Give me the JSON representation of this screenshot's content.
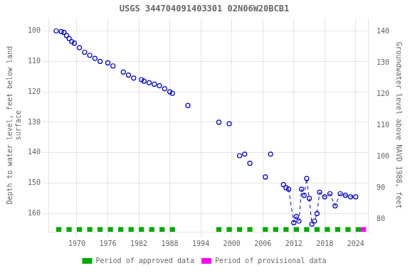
{
  "chart_data": {
    "type": "scatter",
    "title": "USGS 344704091403301 02N06W20BCB1",
    "ylabel": "Depth to water level, feet below land\nsurface",
    "y2label": "Groundwater level above NAVD 1988, feet",
    "xlim": [
      1964.5,
      2026.5
    ],
    "xticks": [
      1970,
      1976,
      1982,
      1988,
      1994,
      2000,
      2006,
      2012,
      2018,
      2024
    ],
    "ylim": [
      166,
      96
    ],
    "yticks": [
      100,
      110,
      120,
      130,
      140,
      150,
      160
    ],
    "y2lim": [
      76,
      144
    ],
    "y2ticks": [
      80,
      90,
      100,
      110,
      120,
      130,
      140
    ],
    "grid": true,
    "legend": "bottom",
    "series": [
      {
        "color": "#0000cc",
        "marker": "circle",
        "line_style": "none",
        "x": [
          1966,
          1967,
          1967.5,
          1968,
          1968.5,
          1969,
          1969.5,
          1970.5,
          1971.5,
          1972.5,
          1973.5,
          1974.5,
          1976,
          1977,
          1979,
          1980,
          1981,
          1982.5,
          1983,
          1984,
          1985,
          1986,
          1987,
          1988,
          1988.5,
          1991.5,
          1997.5,
          1999.5,
          2001.5,
          2002.5,
          2003.5,
          2006.5,
          2007.5,
          2010,
          2010.5
        ],
        "values": [
          100.0,
          100.2,
          100.5,
          101.5,
          102.5,
          103.5,
          104.0,
          105.5,
          107.0,
          108.0,
          109.0,
          110.0,
          110.5,
          111.5,
          113.5,
          114.5,
          115.5,
          116.0,
          116.5,
          117.0,
          117.5,
          118.0,
          119.0,
          120.0,
          120.5,
          124.5,
          130.0,
          130.5,
          141.0,
          140.5,
          143.5,
          148.0,
          140.5,
          150.5,
          151.5
        ]
      },
      {
        "color": "#0000cc",
        "marker": "circle",
        "line_style": "dashed",
        "x": [
          2011,
          2012,
          2012.5,
          2013,
          2013.5,
          2014,
          2014.5,
          2015,
          2015.5,
          2016,
          2016.5,
          2017,
          2018,
          2019,
          2020,
          2021,
          2022,
          2023,
          2024
        ],
        "values": [
          152.0,
          163.0,
          161.0,
          162.5,
          152.0,
          154.0,
          148.5,
          155.0,
          163.5,
          162.5,
          160.0,
          153.0,
          154.5,
          153.5,
          157.5,
          153.5,
          154.0,
          154.5,
          154.5
        ]
      },
      {
        "name": "Period of approved data",
        "type": "period",
        "color": "#00aa00",
        "periods": [
          [
            1966,
            1967
          ],
          [
            1968,
            1969
          ],
          [
            1970,
            1971
          ],
          [
            1972,
            1973
          ],
          [
            1974,
            1975
          ],
          [
            1976,
            1977
          ],
          [
            1978,
            1979
          ],
          [
            1980,
            1981
          ],
          [
            1982,
            1983
          ],
          [
            1984,
            1985
          ],
          [
            1986,
            1987
          ],
          [
            1988,
            1989
          ],
          [
            1997,
            1998
          ],
          [
            1999,
            2000
          ],
          [
            2001,
            2002
          ],
          [
            2003,
            2004
          ],
          [
            2006,
            2007
          ],
          [
            2008,
            2009
          ],
          [
            2010,
            2011
          ],
          [
            2012,
            2013
          ],
          [
            2014,
            2015
          ],
          [
            2016,
            2017
          ],
          [
            2018,
            2019
          ],
          [
            2020,
            2021
          ],
          [
            2022,
            2023
          ],
          [
            2024,
            2025
          ]
        ]
      },
      {
        "name": "Period of provisional data",
        "type": "period",
        "color": "#ff00ff",
        "periods": [
          [
            2025,
            2026
          ]
        ]
      }
    ]
  }
}
